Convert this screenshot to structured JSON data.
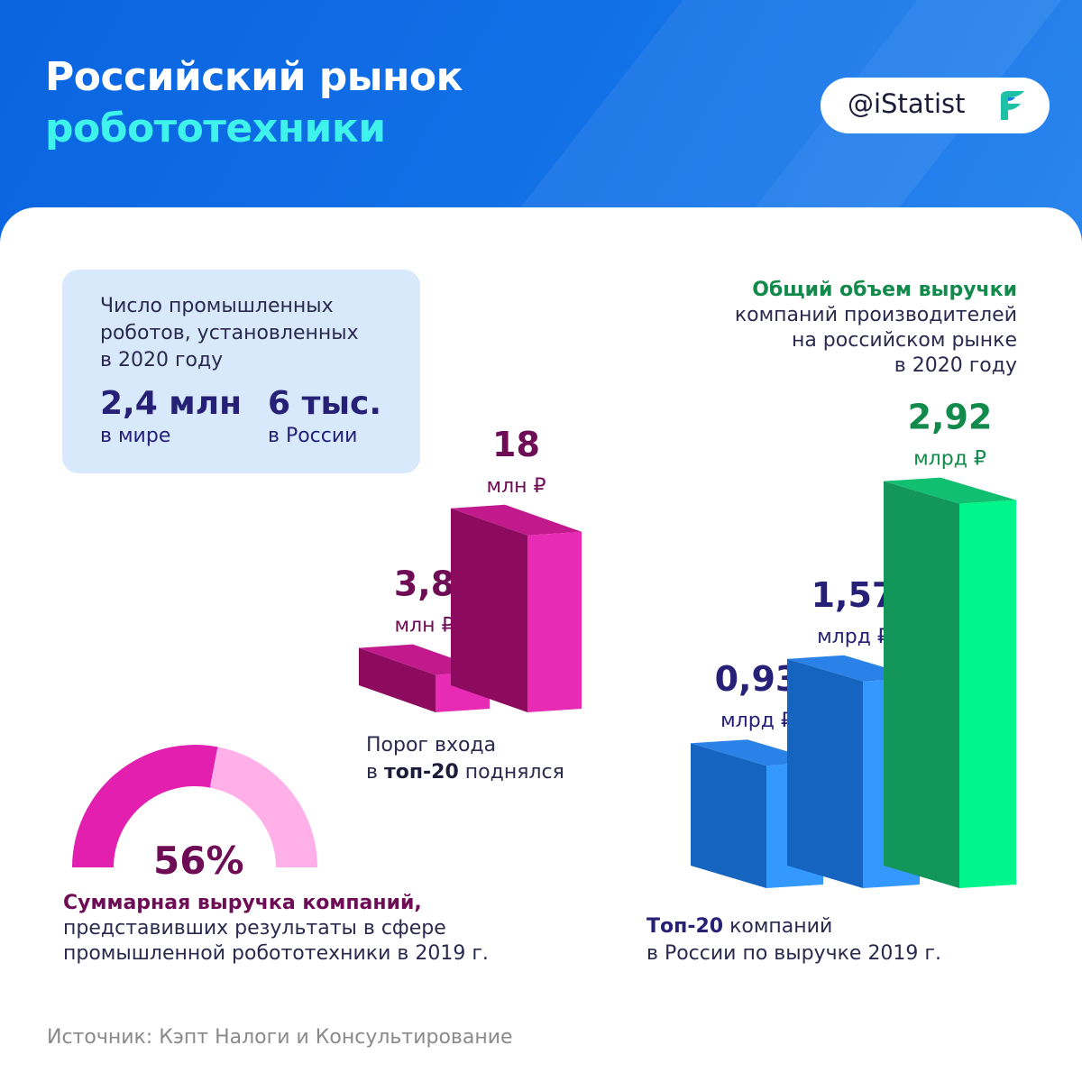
{
  "header": {
    "title_line1": "Российский рынок",
    "title_line2": "робототехники",
    "brand": "@iStatist"
  },
  "robots": {
    "caption_line1": "Число промышленных",
    "caption_line2": "роботов, установленных",
    "caption_line3": "в 2020 году",
    "world_value": "2,4 млн",
    "world_label": "в мире",
    "russia_value": "6 тыс.",
    "russia_label": "в России"
  },
  "threshold": {
    "caption_prefix": "Порог входа",
    "caption_in": "в",
    "caption_bold": "топ-20",
    "caption_suffix": "поднялся"
  },
  "revenue": {
    "title_bold": "Общий объем выручки",
    "title_line2": "компаний производителей",
    "title_line3": "на российском рынке",
    "title_line4": "в 2020 году",
    "caption_bold": "Топ-20",
    "caption_rest": "компаний",
    "caption_line2": "в России по выручке 2019 г."
  },
  "share": {
    "value": "56%",
    "text_bold": "Суммарная выручка компаний,",
    "text_line2": "представивших результаты в сфере",
    "text_line3": "промышленной робототехники в 2019 г."
  },
  "source": "Источник: Кэпт Налоги и Консультирование",
  "chart_data": [
    {
      "type": "bar",
      "categories": [
        "",
        ""
      ],
      "values": [
        3.8,
        18
      ],
      "value_labels": [
        "3,8",
        "18"
      ],
      "unit_labels": [
        "млн ₽",
        "млн ₽"
      ],
      "colors": {
        "front": "#8c0b5f",
        "side": "#e82bb4",
        "top": "#c21a8d",
        "text": "#6e0d55"
      }
    },
    {
      "type": "bar",
      "categories": [
        "",
        "",
        ""
      ],
      "values": [
        0.93,
        1.57,
        2.92
      ],
      "value_labels": [
        "0,93",
        "1,57",
        "2,92"
      ],
      "unit_labels": [
        "млрд ₽",
        "млрд ₽",
        "млрд ₽"
      ],
      "colors": {
        "front": [
          "#1565c0",
          "#1565c0",
          "#12965a"
        ],
        "side": [
          "#3399ff",
          "#3399ff",
          "#00f58a"
        ],
        "top": [
          "#2a82e8",
          "#2a82e8",
          "#10c070"
        ],
        "text": [
          "#262077",
          "#262077",
          "#128a4b"
        ]
      }
    },
    {
      "type": "pie",
      "values": [
        56,
        44
      ],
      "value_label": "56%",
      "colors": [
        "#e31fb0",
        "#ffb0e8"
      ]
    }
  ]
}
